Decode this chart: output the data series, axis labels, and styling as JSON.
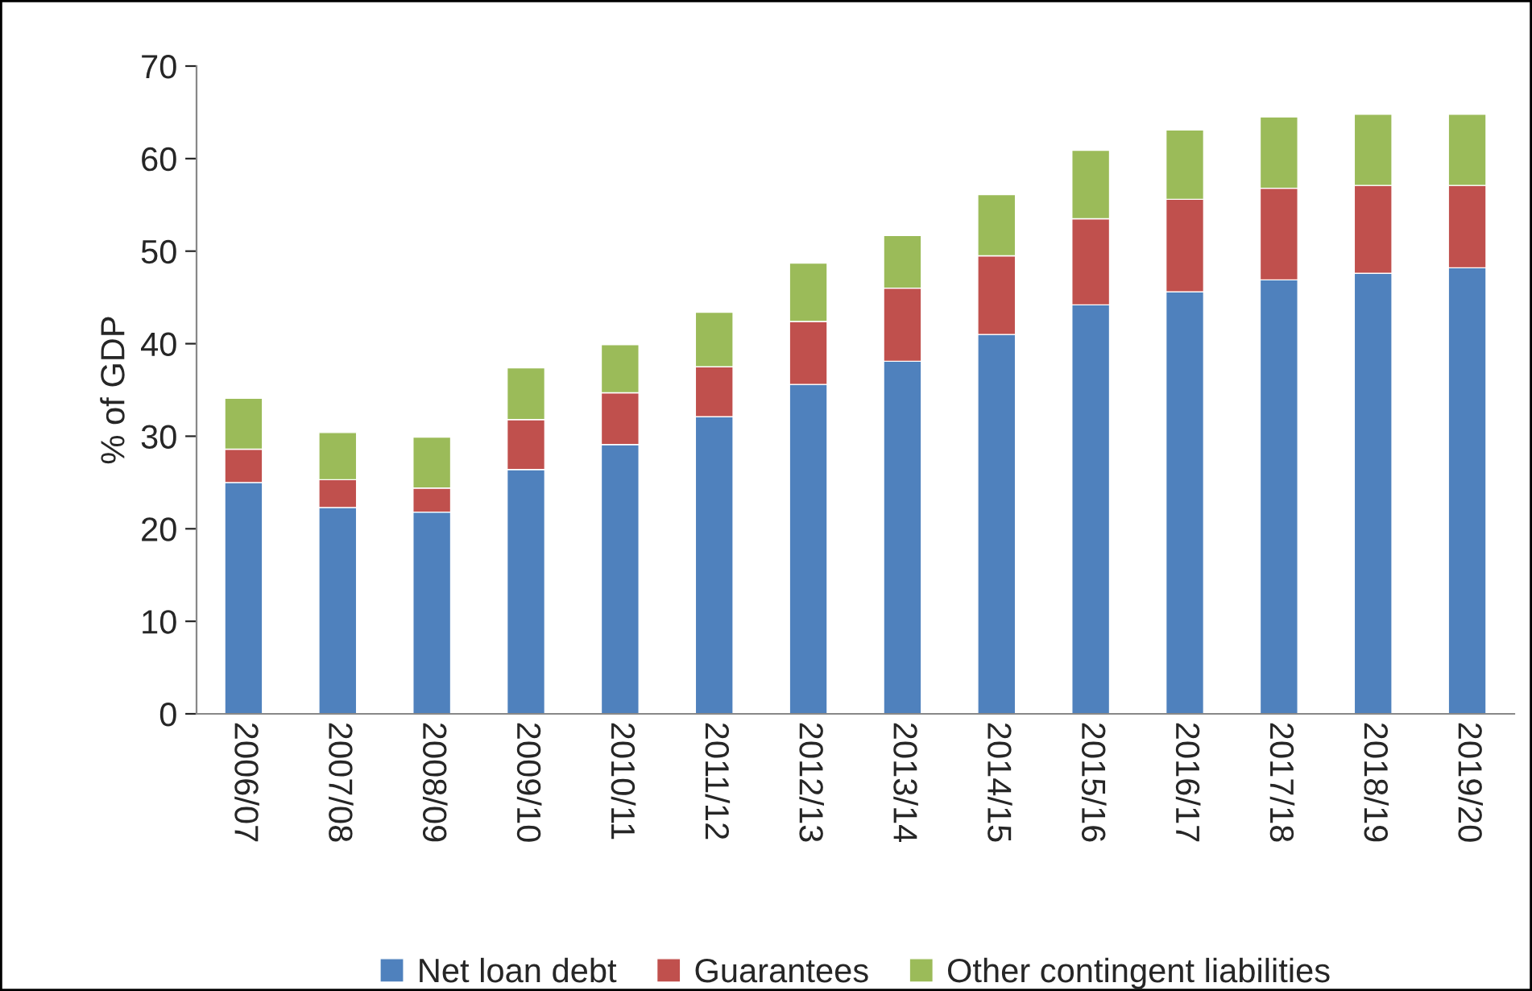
{
  "chart_data": {
    "type": "bar",
    "stacked": true,
    "ylabel": "% of GDP",
    "categories": [
      "2006/07",
      "2007/08",
      "2008/09",
      "2009/10",
      "2010/11",
      "2011/12",
      "2012/13",
      "2013/14",
      "2014/15",
      "2015/16",
      "2016/17",
      "2017/18",
      "2018/19",
      "2019/20"
    ],
    "series": [
      {
        "name": "Net loan debt",
        "color": "#4f81bd",
        "values": [
          25.0,
          22.3,
          21.8,
          26.4,
          29.1,
          32.1,
          35.6,
          38.1,
          41.0,
          44.2,
          45.6,
          46.9,
          47.6,
          48.2
        ]
      },
      {
        "name": "Guarantees",
        "color": "#c0504d",
        "values": [
          3.6,
          3.0,
          2.6,
          5.4,
          5.6,
          5.4,
          6.8,
          7.9,
          8.5,
          9.3,
          10.0,
          9.9,
          9.5,
          8.9
        ]
      },
      {
        "name": "Other contingent liabilities",
        "color": "#9bbb59",
        "values": [
          5.5,
          5.1,
          5.5,
          5.6,
          5.2,
          5.9,
          6.3,
          5.7,
          6.6,
          7.4,
          7.5,
          7.7,
          7.7,
          7.7
        ]
      }
    ],
    "ylim": [
      0,
      70
    ],
    "yticks": [
      0,
      10,
      20,
      30,
      40,
      50,
      60,
      70
    ],
    "grid": false,
    "legend": "bottom"
  }
}
